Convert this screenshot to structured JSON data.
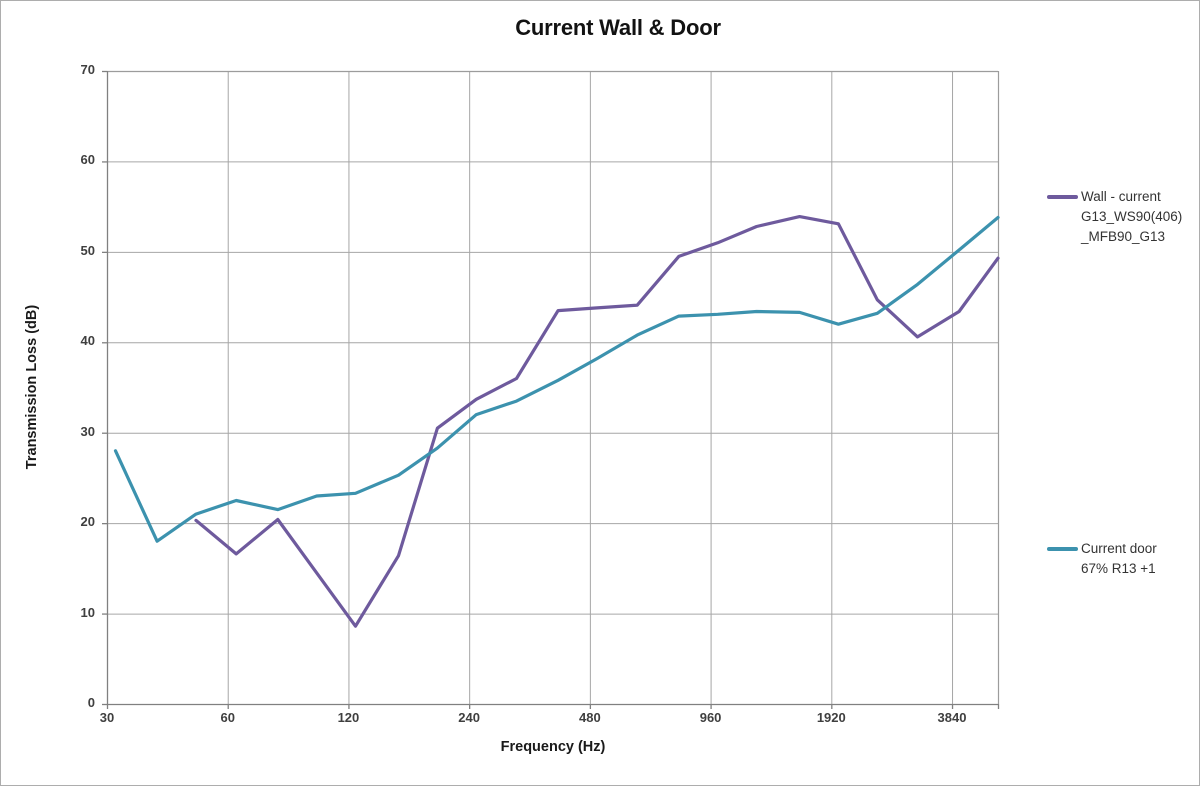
{
  "chart_data": {
    "type": "line",
    "title": "Current Wall & Door",
    "xlabel": "Frequency (Hz)",
    "ylabel": "Transmission Loss (dB)",
    "x_scale": "log2",
    "x_range": [
      30,
      5000
    ],
    "ylim": [
      0,
      70
    ],
    "x_ticks": [
      30,
      60,
      120,
      240,
      480,
      960,
      1920,
      3840
    ],
    "y_ticks": [
      0,
      10,
      20,
      30,
      40,
      50,
      60,
      70
    ],
    "grid": "on",
    "legend_position": "right",
    "series": [
      {
        "name": "Wall - current G13_WS90(406)_MFB90_G13",
        "color": "#6e5a9d",
        "x": [
          50,
          63,
          80,
          100,
          125,
          160,
          200,
          250,
          315,
          400,
          500,
          630,
          800,
          1000,
          1250,
          1600,
          2000,
          2500,
          3150,
          4000,
          5000
        ],
        "values": [
          20.3,
          16.6,
          20.4,
          14.5,
          8.6,
          16.4,
          30.5,
          33.7,
          36.0,
          43.5,
          43.8,
          44.1,
          49.5,
          51.0,
          52.8,
          53.9,
          53.1,
          44.7,
          40.6,
          43.4,
          49.3
        ]
      },
      {
        "name": "Current door 67% R13 +1",
        "color": "#3c92ae",
        "x": [
          31.5,
          40,
          50,
          63,
          80,
          100,
          125,
          160,
          200,
          250,
          315,
          400,
          500,
          630,
          800,
          1000,
          1250,
          1600,
          2000,
          2500,
          3150,
          4000,
          5000
        ],
        "values": [
          28.0,
          18.0,
          21.0,
          22.5,
          21.5,
          23.0,
          23.3,
          25.3,
          28.3,
          32.0,
          33.5,
          35.8,
          38.2,
          40.8,
          42.9,
          43.1,
          43.4,
          43.3,
          42.0,
          43.2,
          46.4,
          50.2,
          53.8
        ]
      }
    ]
  },
  "legend": {
    "items": [
      {
        "lines": [
          "Wall - current",
          "G13_WS90(406)",
          "_MFB90_G13"
        ]
      },
      {
        "lines": [
          "Current door",
          "67% R13 +1"
        ]
      }
    ]
  },
  "style": {
    "grid_color": "#a6a6a6",
    "axis_color": "#808080",
    "border_color": "#9c9c9c",
    "tick_label_color": "#3f3f3f"
  }
}
